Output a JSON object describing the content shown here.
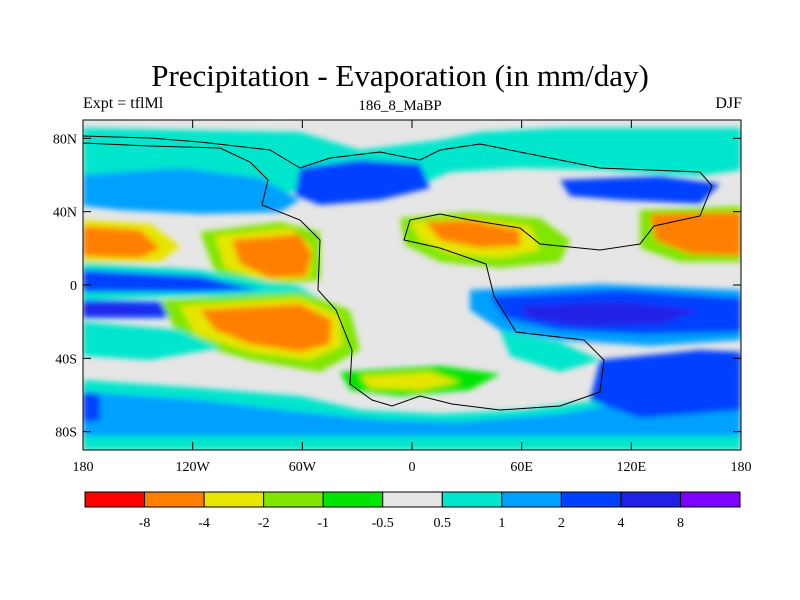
{
  "title": "Precipitation - Evaporation (in mm/day)",
  "subtitle_left": "Expt = tflMl",
  "subtitle_center": "186_8_MaBP",
  "subtitle_right": "DJF",
  "map": {
    "projection": "cylindrical equidistant",
    "lon_range": [
      -180,
      180
    ],
    "lat_range": [
      -90,
      90
    ],
    "x_ticks": [
      {
        "value": -180,
        "label": "180"
      },
      {
        "value": -120,
        "label": "120W"
      },
      {
        "value": -60,
        "label": "60W"
      },
      {
        "value": 0,
        "label": "0"
      },
      {
        "value": 60,
        "label": "60E"
      },
      {
        "value": 120,
        "label": "120E"
      },
      {
        "value": 180,
        "label": "180"
      }
    ],
    "y_ticks": [
      {
        "value": 80,
        "label": "80N"
      },
      {
        "value": 40,
        "label": "40N"
      },
      {
        "value": 0,
        "label": "0"
      },
      {
        "value": -40,
        "label": "40S"
      },
      {
        "value": -80,
        "label": "80S"
      }
    ]
  },
  "colorbar": {
    "colors": [
      "#ff0000",
      "#ff8000",
      "#e6e600",
      "#80e600",
      "#00e600",
      "#e6e6e6",
      "#00e6cc",
      "#00a0ff",
      "#0040ff",
      "#2020e6",
      "#8000ff"
    ],
    "labels": [
      "-8",
      "-4",
      "-2",
      "-1",
      "-0.5",
      "0.5",
      "1",
      "2",
      "4",
      "8"
    ]
  }
}
